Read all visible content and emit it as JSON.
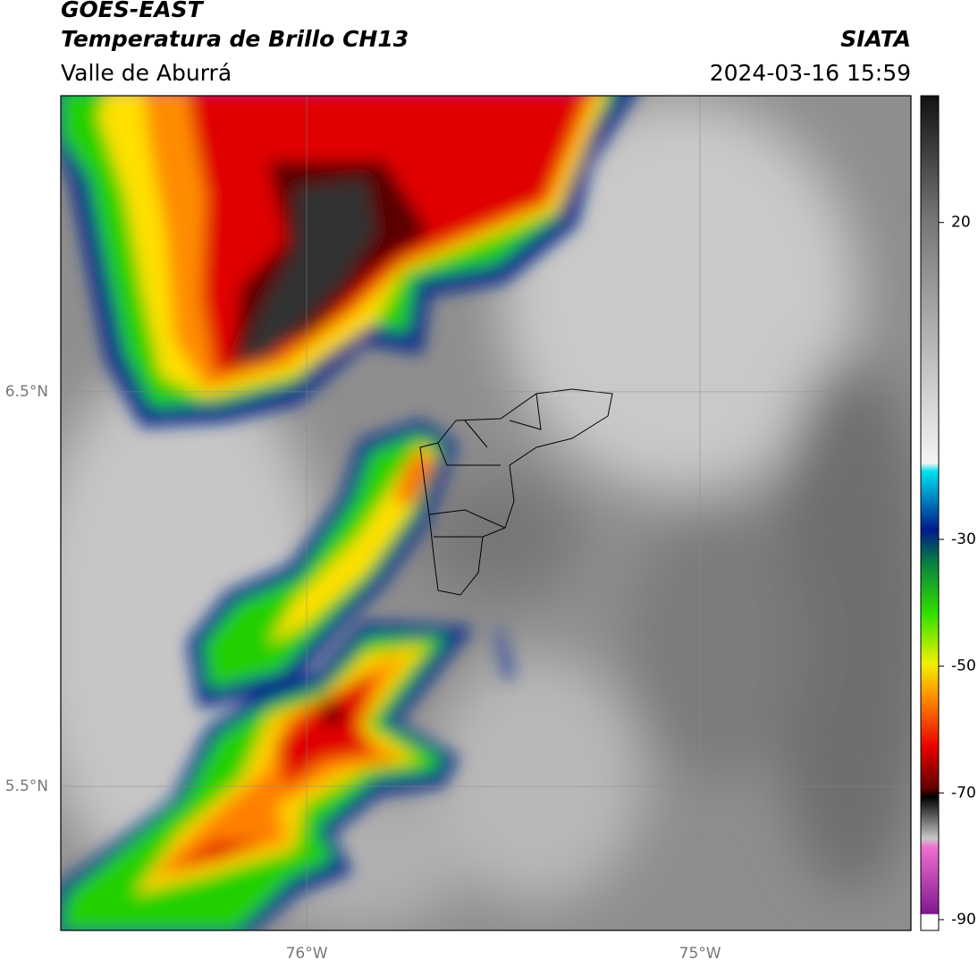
{
  "header": {
    "title": "GOES-EAST",
    "subtitle": "Temperatura de Brillo CH13",
    "source": "SIATA",
    "region": "Valle de Aburrá",
    "datetime": "2024-03-16 15:59"
  },
  "map": {
    "lon_lim": [
      -76.625,
      -74.464
    ],
    "lat_lim": [
      5.135,
      7.25
    ],
    "lon_ticks": [
      {
        "value": -76,
        "label": "76°W"
      },
      {
        "value": -75,
        "label": "75°W"
      }
    ],
    "lat_ticks": [
      {
        "value": 6.5,
        "label": "6.5°N"
      },
      {
        "value": 5.5,
        "label": "5.5°N"
      }
    ]
  },
  "colorbar": {
    "lim": [
      -91.7,
      40
    ],
    "ticks": [
      20,
      -30,
      -50,
      -70,
      -90
    ]
  }
}
